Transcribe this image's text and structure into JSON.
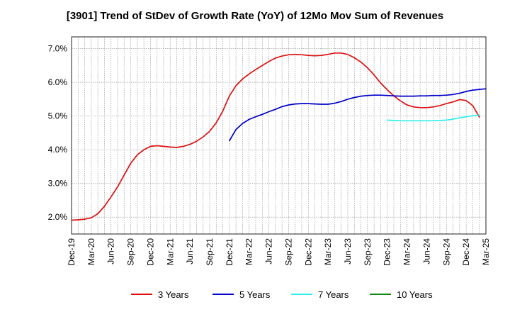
{
  "chart_data": {
    "type": "line",
    "title": "[3901]  Trend of StDev of Growth Rate (YoY) of 12Mo Mov Sum of Revenues",
    "xlabel": "",
    "ylabel": "",
    "grid": true,
    "legend_position": "bottom",
    "ylim": [
      0.015,
      0.0735
    ],
    "y_ticks": [
      0.02,
      0.03,
      0.04,
      0.05,
      0.06,
      0.07
    ],
    "y_tick_labels": [
      "2.0%",
      "3.0%",
      "4.0%",
      "5.0%",
      "6.0%",
      "7.0%"
    ],
    "x_tick_labels": [
      "Dec-19",
      "Mar-20",
      "Jun-20",
      "Sep-20",
      "Dec-20",
      "Mar-21",
      "Jun-21",
      "Sep-21",
      "Dec-21",
      "Mar-22",
      "Jun-22",
      "Sep-22",
      "Dec-22",
      "Mar-23",
      "Jun-23",
      "Sep-23",
      "Dec-23",
      "Mar-24",
      "Jun-24",
      "Sep-24",
      "Dec-24",
      "Mar-25"
    ],
    "series": [
      {
        "name": "3 Years",
        "color": "#dd1111",
        "start_month": 0,
        "values": [
          0.0191,
          0.0192,
          0.0194,
          0.0198,
          0.021,
          0.0232,
          0.026,
          0.029,
          0.0325,
          0.036,
          0.0385,
          0.04,
          0.041,
          0.0412,
          0.041,
          0.0408,
          0.0407,
          0.041,
          0.0416,
          0.0425,
          0.0438,
          0.0455,
          0.048,
          0.0515,
          0.056,
          0.059,
          0.061,
          0.0625,
          0.0638,
          0.065,
          0.0662,
          0.0672,
          0.0678,
          0.0682,
          0.0683,
          0.0682,
          0.068,
          0.0679,
          0.068,
          0.0683,
          0.0687,
          0.0687,
          0.0683,
          0.0673,
          0.066,
          0.0643,
          0.0622,
          0.0598,
          0.0578,
          0.056,
          0.0545,
          0.0533,
          0.0527,
          0.0525,
          0.0525,
          0.0527,
          0.0531,
          0.0537,
          0.0542,
          0.0549,
          0.0546,
          0.0531,
          0.0497
        ]
      },
      {
        "name": "5 Years",
        "color": "#0000cc",
        "start_month": 24,
        "values": [
          0.0427,
          0.046,
          0.0478,
          0.049,
          0.0498,
          0.0505,
          0.0513,
          0.052,
          0.0528,
          0.0533,
          0.0536,
          0.0537,
          0.0537,
          0.0536,
          0.0535,
          0.0535,
          0.0538,
          0.0543,
          0.055,
          0.0555,
          0.0559,
          0.0561,
          0.0562,
          0.0562,
          0.0561,
          0.056,
          0.0559,
          0.0559,
          0.0559,
          0.056,
          0.056,
          0.0561,
          0.0561,
          0.0562,
          0.0564,
          0.0568,
          0.0573,
          0.0577,
          0.0579,
          0.0581
        ]
      },
      {
        "name": "7 Years",
        "color": "#33eeee",
        "start_month": 48,
        "values": [
          0.0488,
          0.0487,
          0.0486,
          0.0486,
          0.0486,
          0.0486,
          0.0486,
          0.0486,
          0.0487,
          0.0488,
          0.0491,
          0.0495,
          0.0498,
          0.0501,
          0.0503
        ]
      },
      {
        "name": "10 Years",
        "color": "#118811",
        "start_month": 0,
        "values": []
      }
    ]
  }
}
